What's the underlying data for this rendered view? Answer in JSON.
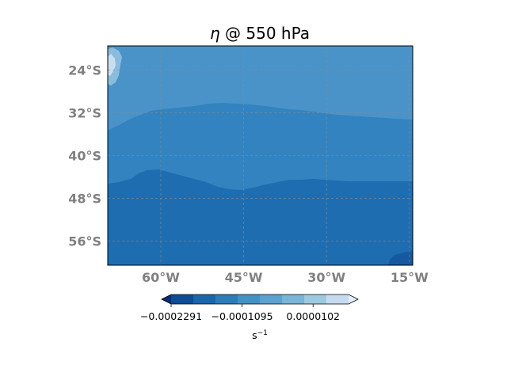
{
  "map": {
    "title_symbol": "η",
    "title_rest": " @ 550 hPa",
    "extent": {
      "lon": [
        -69.6,
        -14.4
      ],
      "lat": [
        -19.5,
        -60.5
      ]
    },
    "lat_ticks": [
      {
        "value": -24,
        "label": "24°S"
      },
      {
        "value": -32,
        "label": "32°S"
      },
      {
        "value": -40,
        "label": "40°S"
      },
      {
        "value": -48,
        "label": "48°S"
      },
      {
        "value": -56,
        "label": "56°S"
      }
    ],
    "lon_ticks": [
      {
        "value": -60,
        "label": "60°W"
      },
      {
        "value": -45,
        "label": "45°W"
      },
      {
        "value": -30,
        "label": "30°W"
      },
      {
        "value": -15,
        "label": "15°W"
      }
    ],
    "gridlines": true,
    "fill_colors": {
      "north_band": "#4a93c9",
      "middle_band": "#3383c0",
      "south_band": "#1f6db1",
      "corner_patch": "#1659a0",
      "coast_patch_light": "#c9dff0",
      "coast_patch_mid": "#8bbcdd"
    }
  },
  "colorbar": {
    "colors": [
      "#08306b",
      "#0c4d95",
      "#1a66ad",
      "#2d7dbb",
      "#4292c6",
      "#5ba2d0",
      "#79b5d9",
      "#9dcae1",
      "#c6dbef",
      "#e4eef8"
    ],
    "ticks": [
      {
        "value": -0.0002291,
        "label": "−0.0002291"
      },
      {
        "value": -0.0001095,
        "label": "−0.0001095"
      },
      {
        "value": 1.02e-05,
        "label": "0.0000102"
      }
    ],
    "range": [
      -0.0002291,
      7e-05
    ],
    "unit_base": "s",
    "unit_exp": "−1"
  }
}
